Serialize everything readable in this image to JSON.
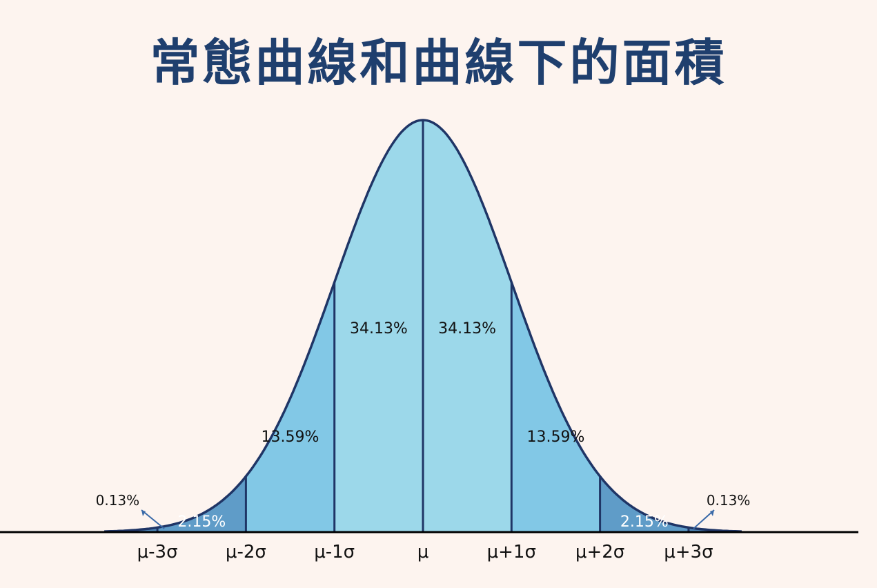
{
  "title": "常態曲線和曲線下的面積",
  "colors": {
    "background": "#fdf4ef",
    "title": "#1f3f6e",
    "curve_outline": "#1f3566",
    "center_band": "#9cd8ea",
    "one_to_two_sigma": "#82c8e6",
    "two_to_three_sigma": "#5f9cc8",
    "tail": "#4d86b8",
    "axis": "#000000"
  },
  "chart_data": {
    "type": "area",
    "distribution": "normal",
    "mean": 0,
    "sd": 1,
    "xlim": [
      -3.6,
      3.6
    ],
    "x_ticks": [
      {
        "value": -3,
        "label": "μ-3σ"
      },
      {
        "value": -2,
        "label": "μ-2σ"
      },
      {
        "value": -1,
        "label": "μ-1σ"
      },
      {
        "value": 0,
        "label": "μ"
      },
      {
        "value": 1,
        "label": "μ+1σ"
      },
      {
        "value": 2,
        "label": "μ+2σ"
      },
      {
        "value": 3,
        "label": "μ+3σ"
      }
    ],
    "regions": [
      {
        "from": -3,
        "to": -2,
        "label": "2.15%",
        "percent": 2.15
      },
      {
        "from": -2,
        "to": -1,
        "label": "13.59%",
        "percent": 13.59
      },
      {
        "from": -1,
        "to": 0,
        "label": "34.13%",
        "percent": 34.13
      },
      {
        "from": 0,
        "to": 1,
        "label": "34.13%",
        "percent": 34.13
      },
      {
        "from": 1,
        "to": 2,
        "label": "13.59%",
        "percent": 13.59
      },
      {
        "from": 2,
        "to": 3,
        "label": "2.15%",
        "percent": 2.15
      }
    ],
    "tails": [
      {
        "side": "left",
        "label": "0.13%",
        "percent": 0.13
      },
      {
        "side": "right",
        "label": "0.13%",
        "percent": 0.13
      }
    ]
  }
}
